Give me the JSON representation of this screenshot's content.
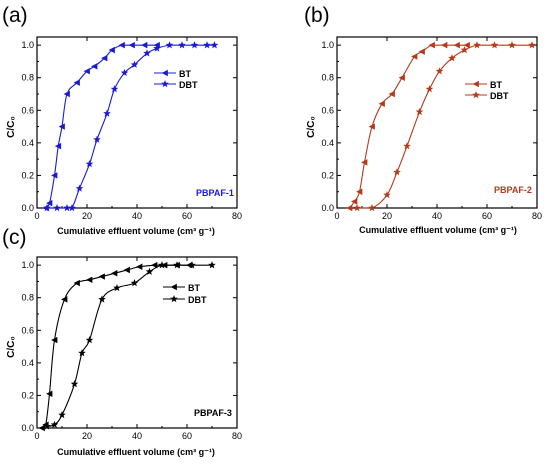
{
  "figure": {
    "panels": [
      {
        "letter": "(a)",
        "tag": "PBPAF-1",
        "color": "#1a1ad6"
      },
      {
        "letter": "(b)",
        "tag": "PBPAF-2",
        "color": "#b5391a"
      },
      {
        "letter": "(c)",
        "tag": "PBPAF-3",
        "color": "#000000"
      }
    ]
  },
  "chart_data": [
    {
      "type": "line",
      "title": "",
      "xlabel": "Cumulative effluent volume (cm³ g⁻¹)",
      "ylabel": "C/C₀",
      "xlim": [
        0,
        80
      ],
      "ylim": [
        0,
        1.05
      ],
      "xticks": [
        "0",
        "20",
        "40",
        "60",
        "80"
      ],
      "yticks": [
        "0.0",
        "0.2",
        "0.4",
        "0.6",
        "0.8",
        "1.0"
      ],
      "legend_position": "top-right",
      "color": "#1a1ad6",
      "series": [
        {
          "name": "BT",
          "marker": "triangle-left",
          "x": [
            3.5,
            5,
            7,
            8.5,
            10,
            12,
            16,
            20,
            23,
            27,
            30,
            34,
            38,
            43,
            48
          ],
          "y": [
            0.0,
            0.03,
            0.2,
            0.38,
            0.5,
            0.7,
            0.77,
            0.84,
            0.87,
            0.92,
            0.97,
            1.0,
            1.0,
            1.0,
            1.0
          ]
        },
        {
          "name": "DBT",
          "marker": "star",
          "x": [
            4,
            8,
            12,
            14,
            17,
            21,
            24,
            28,
            31,
            35,
            39,
            44,
            48,
            53,
            58,
            63,
            68,
            71
          ],
          "y": [
            0.0,
            0.0,
            0.0,
            0.0,
            0.12,
            0.27,
            0.42,
            0.58,
            0.73,
            0.83,
            0.88,
            0.95,
            0.98,
            1.0,
            1.0,
            1.0,
            1.0,
            1.0
          ]
        }
      ]
    },
    {
      "type": "line",
      "title": "",
      "xlabel": "Cumulative effluent volume (cm³ g⁻¹)",
      "ylabel": "C/C₀",
      "xlim": [
        0,
        80
      ],
      "ylim": [
        0,
        1.05
      ],
      "xticks": [
        "0",
        "20",
        "40",
        "60",
        "80"
      ],
      "yticks": [
        "0.0",
        "0.2",
        "0.4",
        "0.6",
        "0.8",
        "1.0"
      ],
      "legend_position": "top-right",
      "color": "#b5391a",
      "series": [
        {
          "name": "BT",
          "marker": "triangle-left",
          "x": [
            5,
            7,
            9,
            11,
            14,
            18,
            22,
            26,
            31,
            34,
            38,
            43,
            48,
            52
          ],
          "y": [
            0.0,
            0.04,
            0.1,
            0.28,
            0.5,
            0.64,
            0.7,
            0.8,
            0.93,
            0.96,
            1.0,
            1.0,
            1.0,
            1.0
          ]
        },
        {
          "name": "DBT",
          "marker": "star",
          "x": [
            8,
            14,
            20,
            24,
            28,
            33,
            37,
            41,
            46,
            51,
            56,
            63,
            70,
            78
          ],
          "y": [
            0.0,
            0.0,
            0.08,
            0.22,
            0.38,
            0.59,
            0.73,
            0.84,
            0.92,
            0.97,
            1.0,
            1.0,
            1.0,
            1.0
          ]
        }
      ]
    },
    {
      "type": "line",
      "title": "",
      "xlabel": "Cumulative effluent volume (cm³ g⁻¹)",
      "ylabel": "C/C₀",
      "xlim": [
        0,
        80
      ],
      "ylim": [
        0,
        1.05
      ],
      "xticks": [
        "0",
        "20",
        "40",
        "60",
        "80"
      ],
      "yticks": [
        "0.0",
        "0.2",
        "0.4",
        "0.6",
        "0.8",
        "1.0"
      ],
      "legend_position": "top-right",
      "color": "#000000",
      "series": [
        {
          "name": "BT",
          "marker": "triangle-left",
          "x": [
            2,
            3.5,
            5,
            7,
            11,
            16,
            21,
            26,
            31,
            36,
            41,
            47,
            51,
            56,
            61
          ],
          "y": [
            0.0,
            0.02,
            0.21,
            0.54,
            0.79,
            0.89,
            0.91,
            0.93,
            0.95,
            0.97,
            0.99,
            1.0,
            1.0,
            1.0,
            1.0
          ]
        },
        {
          "name": "DBT",
          "marker": "star",
          "x": [
            4,
            7,
            10,
            15,
            18,
            21,
            26,
            32,
            39,
            45,
            50,
            56,
            62,
            70
          ],
          "y": [
            0.01,
            0.02,
            0.08,
            0.27,
            0.46,
            0.54,
            0.79,
            0.86,
            0.89,
            0.96,
            1.0,
            1.0,
            1.0,
            1.0
          ]
        }
      ]
    }
  ]
}
